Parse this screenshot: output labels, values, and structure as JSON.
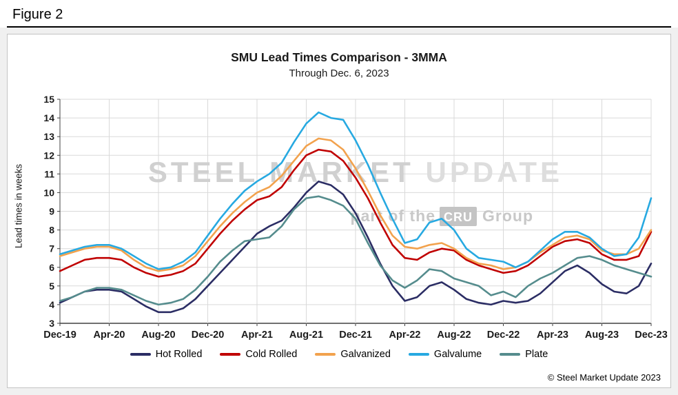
{
  "header": {
    "figure_label": "Figure 2"
  },
  "chart": {
    "title": "SMU Lead Times Comparison - 3MMA",
    "subtitle": "Through Dec. 6, 2023",
    "ylabel": "Lead times in weeks"
  },
  "watermark": {
    "line1_part1": "STEEL MARKET",
    "line1_part2": " UPDATE",
    "line2_prefix": "part of the",
    "line2_badge": "CRU",
    "line2_suffix": "Group"
  },
  "footer": {
    "copyright": "© Steel Market Update 2023"
  },
  "colors": {
    "hot_rolled": "#2B2D64",
    "cold_rolled": "#C00000",
    "galvanized": "#F2A24D",
    "galvalume": "#27A9E1",
    "plate": "#558C8D",
    "gridline": "#d9d9d9",
    "axis": "#404040"
  },
  "chart_data": {
    "type": "line",
    "title": "SMU Lead Times Comparison - 3MMA",
    "subtitle": "Through Dec. 6, 2023",
    "xlabel": "",
    "ylabel": "Lead times in weeks",
    "ylim": [
      3,
      15
    ],
    "y_tick_step": 1,
    "grid": true,
    "legend_position": "bottom",
    "x_labels": [
      "Dec-19",
      "Jan-20",
      "Feb-20",
      "Mar-20",
      "Apr-20",
      "May-20",
      "Jun-20",
      "Jul-20",
      "Aug-20",
      "Sep-20",
      "Oct-20",
      "Nov-20",
      "Dec-20",
      "Jan-21",
      "Feb-21",
      "Mar-21",
      "Apr-21",
      "May-21",
      "Jun-21",
      "Jul-21",
      "Aug-21",
      "Sep-21",
      "Oct-21",
      "Nov-21",
      "Dec-21",
      "Jan-22",
      "Feb-22",
      "Mar-22",
      "Apr-22",
      "May-22",
      "Jun-22",
      "Jul-22",
      "Aug-22",
      "Sep-22",
      "Oct-22",
      "Nov-22",
      "Dec-22",
      "Jan-23",
      "Feb-23",
      "Mar-23",
      "Apr-23",
      "May-23",
      "Jun-23",
      "Jul-23",
      "Aug-23",
      "Sep-23",
      "Oct-23",
      "Nov-23",
      "Dec-23"
    ],
    "x_tick_positions": [
      0,
      4,
      8,
      12,
      16,
      20,
      24,
      28,
      32,
      36,
      40,
      44,
      48
    ],
    "x_tick_labels": [
      "Dec-19",
      "Apr-20",
      "Aug-20",
      "Dec-20",
      "Apr-21",
      "Aug-21",
      "Dec-21",
      "Apr-22",
      "Aug-22",
      "Dec-22",
      "Apr-23",
      "Aug-23",
      "Dec-23"
    ],
    "series": [
      {
        "name": "Hot Rolled",
        "color": "#2B2D64",
        "values": [
          4.1,
          4.4,
          4.7,
          4.8,
          4.8,
          4.7,
          4.3,
          3.9,
          3.6,
          3.6,
          3.8,
          4.3,
          5.0,
          5.7,
          6.4,
          7.1,
          7.8,
          8.2,
          8.5,
          9.2,
          10.0,
          10.6,
          10.4,
          9.9,
          8.9,
          7.6,
          6.2,
          5.0,
          4.2,
          4.4,
          5.0,
          5.2,
          4.8,
          4.3,
          4.1,
          4.0,
          4.2,
          4.1,
          4.2,
          4.6,
          5.2,
          5.8,
          6.1,
          5.7,
          5.1,
          4.7,
          4.6,
          5.0,
          6.2
        ]
      },
      {
        "name": "Cold Rolled",
        "color": "#C00000",
        "values": [
          5.8,
          6.1,
          6.4,
          6.5,
          6.5,
          6.4,
          6.0,
          5.7,
          5.5,
          5.6,
          5.8,
          6.2,
          7.0,
          7.8,
          8.5,
          9.1,
          9.6,
          9.8,
          10.3,
          11.2,
          12.0,
          12.3,
          12.2,
          11.7,
          10.8,
          9.7,
          8.4,
          7.2,
          6.5,
          6.4,
          6.8,
          7.0,
          6.9,
          6.4,
          6.1,
          5.9,
          5.7,
          5.8,
          6.1,
          6.6,
          7.1,
          7.4,
          7.5,
          7.3,
          6.7,
          6.4,
          6.4,
          6.6,
          7.9
        ]
      },
      {
        "name": "Galvanized",
        "color": "#F2A24D",
        "values": [
          6.6,
          6.8,
          7.0,
          7.1,
          7.1,
          6.9,
          6.4,
          6.0,
          5.8,
          5.9,
          6.1,
          6.6,
          7.4,
          8.2,
          8.9,
          9.5,
          10.0,
          10.3,
          10.9,
          11.7,
          12.5,
          12.9,
          12.8,
          12.3,
          11.3,
          10.1,
          8.8,
          7.7,
          7.1,
          7.0,
          7.2,
          7.3,
          7.0,
          6.5,
          6.2,
          6.1,
          5.9,
          6.0,
          6.3,
          6.8,
          7.2,
          7.6,
          7.7,
          7.5,
          6.9,
          6.7,
          6.7,
          7.0,
          8.0
        ]
      },
      {
        "name": "Galvalume",
        "color": "#27A9E1",
        "values": [
          6.7,
          6.9,
          7.1,
          7.2,
          7.2,
          7.0,
          6.6,
          6.2,
          5.9,
          6.0,
          6.3,
          6.8,
          7.7,
          8.6,
          9.4,
          10.1,
          10.6,
          11.0,
          11.6,
          12.7,
          13.7,
          14.3,
          14.0,
          13.9,
          12.8,
          11.5,
          10.0,
          8.6,
          7.3,
          7.5,
          8.4,
          8.6,
          8.0,
          7.0,
          6.5,
          6.4,
          6.3,
          6.0,
          6.3,
          6.9,
          7.5,
          7.9,
          7.9,
          7.6,
          7.0,
          6.6,
          6.7,
          7.6,
          9.7
        ]
      },
      {
        "name": "Plate",
        "color": "#558C8D",
        "values": [
          4.2,
          4.4,
          4.7,
          4.9,
          4.9,
          4.8,
          4.5,
          4.2,
          4.0,
          4.1,
          4.3,
          4.8,
          5.5,
          6.3,
          6.9,
          7.4,
          7.5,
          7.6,
          8.2,
          9.1,
          9.7,
          9.8,
          9.6,
          9.3,
          8.6,
          7.3,
          6.1,
          5.3,
          4.9,
          5.3,
          5.9,
          5.8,
          5.4,
          5.2,
          5.0,
          4.5,
          4.7,
          4.4,
          5.0,
          5.4,
          5.7,
          6.1,
          6.5,
          6.6,
          6.4,
          6.1,
          5.9,
          5.7,
          5.5
        ]
      }
    ]
  }
}
